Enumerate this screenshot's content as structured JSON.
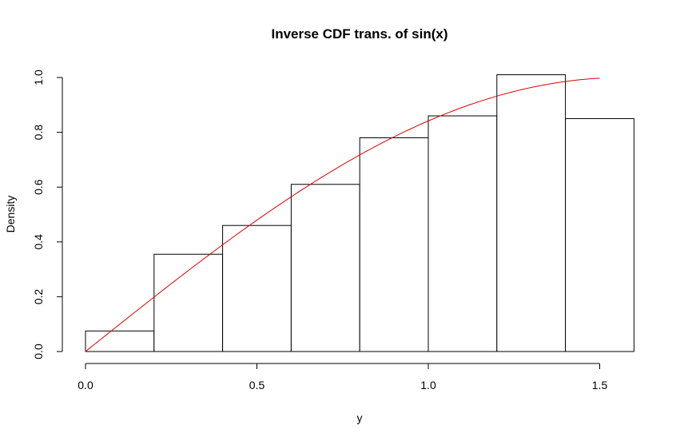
{
  "chart_data": {
    "type": "bar",
    "title": "Inverse CDF trans. of sin(x)",
    "xlabel": "y",
    "ylabel": "Density",
    "bins": [
      {
        "start": 0.0,
        "end": 0.2,
        "density": 0.075
      },
      {
        "start": 0.2,
        "end": 0.4,
        "density": 0.355
      },
      {
        "start": 0.4,
        "end": 0.6,
        "density": 0.46
      },
      {
        "start": 0.6,
        "end": 0.8,
        "density": 0.61
      },
      {
        "start": 0.8,
        "end": 1.0,
        "density": 0.78
      },
      {
        "start": 1.0,
        "end": 1.2,
        "density": 0.86
      },
      {
        "start": 1.2,
        "end": 1.4,
        "density": 1.01
      },
      {
        "start": 1.4,
        "end": 1.6,
        "density": 0.85
      }
    ],
    "curve": {
      "function": "sin(x)",
      "x_range": [
        0.0,
        1.5
      ],
      "color": "#dd0000"
    },
    "xticks": [
      {
        "value": 0.0,
        "label": "0.0"
      },
      {
        "value": 0.5,
        "label": "0.5"
      },
      {
        "value": 1.0,
        "label": "1.0"
      },
      {
        "value": 1.5,
        "label": "1.5"
      }
    ],
    "yticks": [
      {
        "value": 0.0,
        "label": "0.0"
      },
      {
        "value": 0.2,
        "label": "0.2"
      },
      {
        "value": 0.4,
        "label": "0.4"
      },
      {
        "value": 0.6,
        "label": "0.6"
      },
      {
        "value": 0.8,
        "label": "0.8"
      },
      {
        "value": 1.0,
        "label": "1.0"
      }
    ],
    "xlim": [
      0.0,
      1.6
    ],
    "ylim": [
      0.0,
      1.01
    ],
    "grid": false,
    "bar_fill": "#ffffff",
    "bar_stroke": "#000000"
  }
}
